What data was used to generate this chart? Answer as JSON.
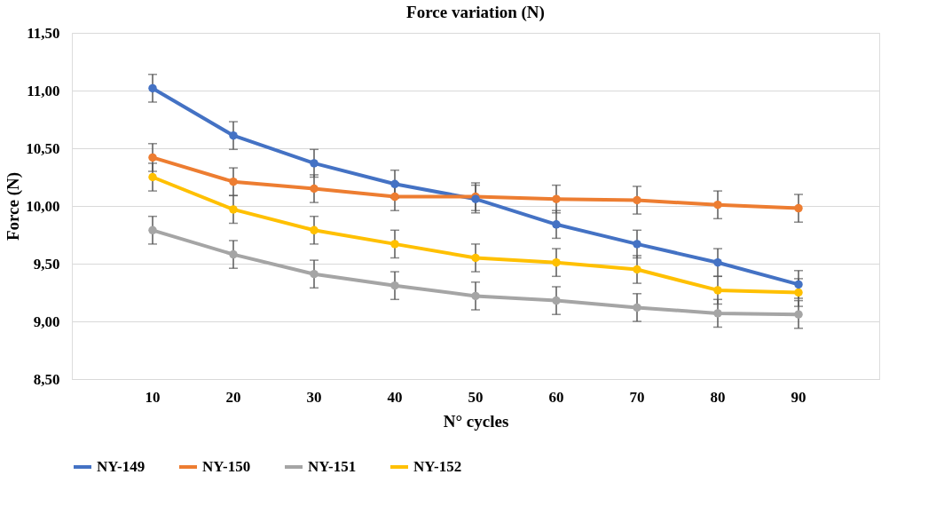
{
  "chart_data": {
    "type": "line",
    "title": "Force variation (N)",
    "xlabel": "N° cycles",
    "ylabel": "Force (N)",
    "categories": [
      "10",
      "20",
      "30",
      "40",
      "50",
      "60",
      "70",
      "80",
      "90"
    ],
    "series": [
      {
        "name": "NY-149",
        "color": "#4472c4",
        "values": [
          11.02,
          10.61,
          10.37,
          10.19,
          10.06,
          9.84,
          9.67,
          9.51,
          9.32
        ],
        "errors": [
          0.12,
          0.12,
          0.12,
          0.12,
          0.12,
          0.12,
          0.12,
          0.12,
          0.12
        ]
      },
      {
        "name": "NY-150",
        "color": "#ed7d31",
        "values": [
          10.42,
          10.21,
          10.15,
          10.08,
          10.08,
          10.06,
          10.05,
          10.01,
          9.98
        ],
        "errors": [
          0.12,
          0.12,
          0.12,
          0.12,
          0.12,
          0.12,
          0.12,
          0.12,
          0.12
        ]
      },
      {
        "name": "NY-151",
        "color": "#a5a5a5",
        "values": [
          9.79,
          9.58,
          9.41,
          9.31,
          9.22,
          9.18,
          9.12,
          9.07,
          9.06
        ],
        "errors": [
          0.12,
          0.12,
          0.12,
          0.12,
          0.12,
          0.12,
          0.12,
          0.12,
          0.12
        ]
      },
      {
        "name": "NY-152",
        "color": "#ffc000",
        "values": [
          10.25,
          9.97,
          9.79,
          9.67,
          9.55,
          9.51,
          9.45,
          9.27,
          9.25
        ],
        "errors": [
          0.12,
          0.12,
          0.12,
          0.12,
          0.12,
          0.12,
          0.12,
          0.12,
          0.12
        ]
      }
    ],
    "ylim": [
      8.5,
      11.5
    ],
    "yticks": [
      {
        "value": 8.5,
        "label": "8,50"
      },
      {
        "value": 9,
        "label": "9,00"
      },
      {
        "value": 9.5,
        "label": "9,50"
      },
      {
        "value": 10,
        "label": "10,00"
      },
      {
        "value": 10.5,
        "label": "10,50"
      },
      {
        "value": 11,
        "label": "11,00"
      },
      {
        "value": 11.5,
        "label": "11,50"
      }
    ],
    "grid": "y",
    "legend": "bottom",
    "marker": "circle",
    "line_style": "solid"
  }
}
